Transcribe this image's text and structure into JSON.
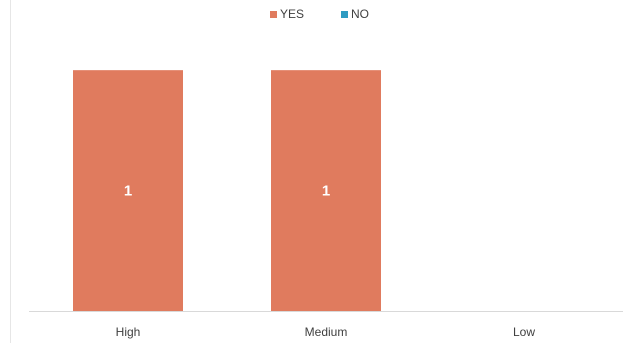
{
  "chart_data": {
    "type": "bar",
    "categories": [
      "High",
      "Medium",
      "Low"
    ],
    "series": [
      {
        "name": "YES",
        "values": [
          1,
          1,
          0
        ],
        "color": "#e07b5e"
      },
      {
        "name": "NO",
        "values": [
          0,
          0,
          0
        ],
        "color": "#2e9bc2"
      }
    ],
    "data_labels": [
      "1",
      "1",
      ""
    ],
    "title": "",
    "xlabel": "",
    "ylabel": "",
    "ylim": [
      0,
      1.2
    ],
    "stacked": true,
    "grid": false,
    "legend": "top-center"
  }
}
